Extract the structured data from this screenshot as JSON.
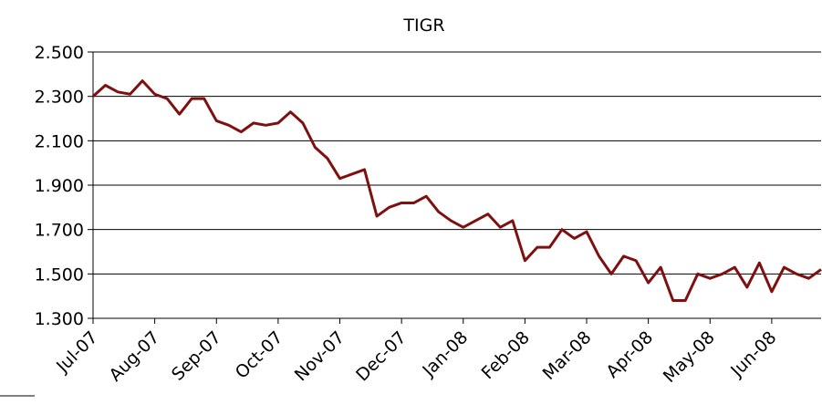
{
  "chart_data": {
    "type": "line",
    "title": "TIGR",
    "x": [
      0,
      0.2,
      0.4,
      0.6,
      0.8,
      1.0,
      1.2,
      1.4,
      1.6,
      1.8,
      2.0,
      2.2,
      2.4,
      2.6,
      2.8,
      3.0,
      3.2,
      3.4,
      3.6,
      3.8,
      4.0,
      4.2,
      4.4,
      4.6,
      4.8,
      5.0,
      5.2,
      5.4,
      5.6,
      5.8,
      6.0,
      6.2,
      6.4,
      6.6,
      6.8,
      7.0,
      7.2,
      7.4,
      7.6,
      7.8,
      8.0,
      8.2,
      8.4,
      8.6,
      8.8,
      9.0,
      9.2,
      9.4,
      9.6,
      9.8,
      10.0,
      10.2,
      10.4,
      10.6,
      10.8,
      11.0,
      11.2,
      11.4,
      11.6,
      11.8
    ],
    "series": [
      {
        "color": "#7f1010",
        "values": [
          2.3,
          2.35,
          2.32,
          2.31,
          2.37,
          2.31,
          2.29,
          2.22,
          2.29,
          2.29,
          2.19,
          2.17,
          2.14,
          2.18,
          2.17,
          2.18,
          2.23,
          2.18,
          2.07,
          2.02,
          1.93,
          1.95,
          1.97,
          1.76,
          1.8,
          1.82,
          1.82,
          1.85,
          1.78,
          1.74,
          1.71,
          1.74,
          1.77,
          1.71,
          1.74,
          1.56,
          1.62,
          1.62,
          1.7,
          1.66,
          1.69,
          1.58,
          1.5,
          1.58,
          1.56,
          1.46,
          1.53,
          1.38,
          1.38,
          1.5,
          1.48,
          1.5,
          1.53,
          1.44,
          1.55,
          1.42,
          1.53,
          1.5,
          1.48,
          1.52
        ]
      }
    ],
    "xlim": [
      0,
      11.8
    ],
    "xticks": [
      {
        "value": 0,
        "label": "Jul-07"
      },
      {
        "value": 1,
        "label": "Aug-07"
      },
      {
        "value": 2,
        "label": "Sep-07"
      },
      {
        "value": 3,
        "label": "Oct-07"
      },
      {
        "value": 4,
        "label": "Nov-07"
      },
      {
        "value": 5,
        "label": "Dec-07"
      },
      {
        "value": 6,
        "label": "Jan-08"
      },
      {
        "value": 7,
        "label": "Feb-08"
      },
      {
        "value": 8,
        "label": "Mar-08"
      },
      {
        "value": 9,
        "label": "Apr-08"
      },
      {
        "value": 10,
        "label": "May-08"
      },
      {
        "value": 11,
        "label": "Jun-08"
      }
    ],
    "ylim": [
      1.3,
      2.5
    ],
    "yticks": [
      {
        "value": 1.3,
        "label": "1.300"
      },
      {
        "value": 1.5,
        "label": "1.500"
      },
      {
        "value": 1.7,
        "label": "1.700"
      },
      {
        "value": 1.9,
        "label": "1.900"
      },
      {
        "value": 2.1,
        "label": "2.100"
      },
      {
        "value": 2.3,
        "label": "2.300"
      },
      {
        "value": 2.5,
        "label": "2.500"
      }
    ],
    "grid": true
  }
}
